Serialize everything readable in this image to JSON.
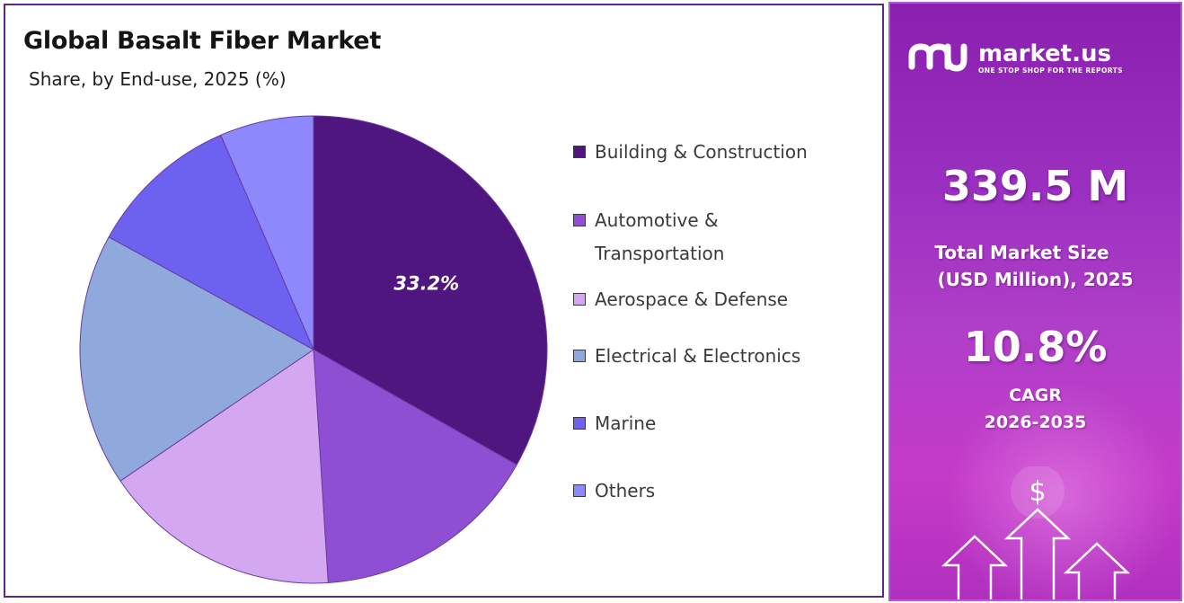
{
  "chart": {
    "title": "Global Basalt Fiber Market",
    "subtitle": "Share, by End-use, 2025 (%)"
  },
  "chart_data": {
    "type": "pie",
    "title": "Global Basalt Fiber Market",
    "subtitle": "Share, by End-use, 2025 (%)",
    "categories": [
      "Building & Construction",
      "Automotive & Transportation",
      "Aerospace & Defense",
      "Electrical & Electronics",
      "Marine",
      "Others"
    ],
    "values": [
      33.2,
      15.8,
      16.5,
      17.5,
      10.5,
      6.5
    ],
    "colors": [
      "#4e167e",
      "#8e4fd3",
      "#d4a8f0",
      "#8fa9dc",
      "#6d62f0",
      "#8d88fb"
    ],
    "data_labels": [
      "33.2%",
      "",
      "",
      "",
      "",
      ""
    ],
    "legend_position": "right",
    "start_angle": "12 o'clock",
    "direction": "clockwise"
  },
  "legend": [
    {
      "lines": [
        "Building & Construction"
      ],
      "color": "#4e167e"
    },
    {
      "lines": [
        "Automotive &",
        "Transportation"
      ],
      "color": "#8e4fd3"
    },
    {
      "lines": [
        "Aerospace & Defense"
      ],
      "color": "#d4a8f0"
    },
    {
      "lines": [
        "Electrical & Electronics"
      ],
      "color": "#8fa9dc"
    },
    {
      "lines": [
        "Marine"
      ],
      "color": "#6d62f0"
    },
    {
      "lines": [
        "Others"
      ],
      "color": "#8d88fb"
    }
  ],
  "brand": {
    "name": "market.us",
    "tagline": "ONE STOP SHOP FOR THE REPORTS",
    "logo_icon": "market-us-logo-icon"
  },
  "stats": {
    "market_size_value": "339.5 M",
    "market_size_line1": "Total Market Size",
    "market_size_line2": "(USD Million), 2025",
    "cagr_value": "10.8%",
    "cagr_line1": "CAGR",
    "cagr_line2": "2026-2035"
  },
  "decor_icon": "dollar-growth-arrows-icon"
}
